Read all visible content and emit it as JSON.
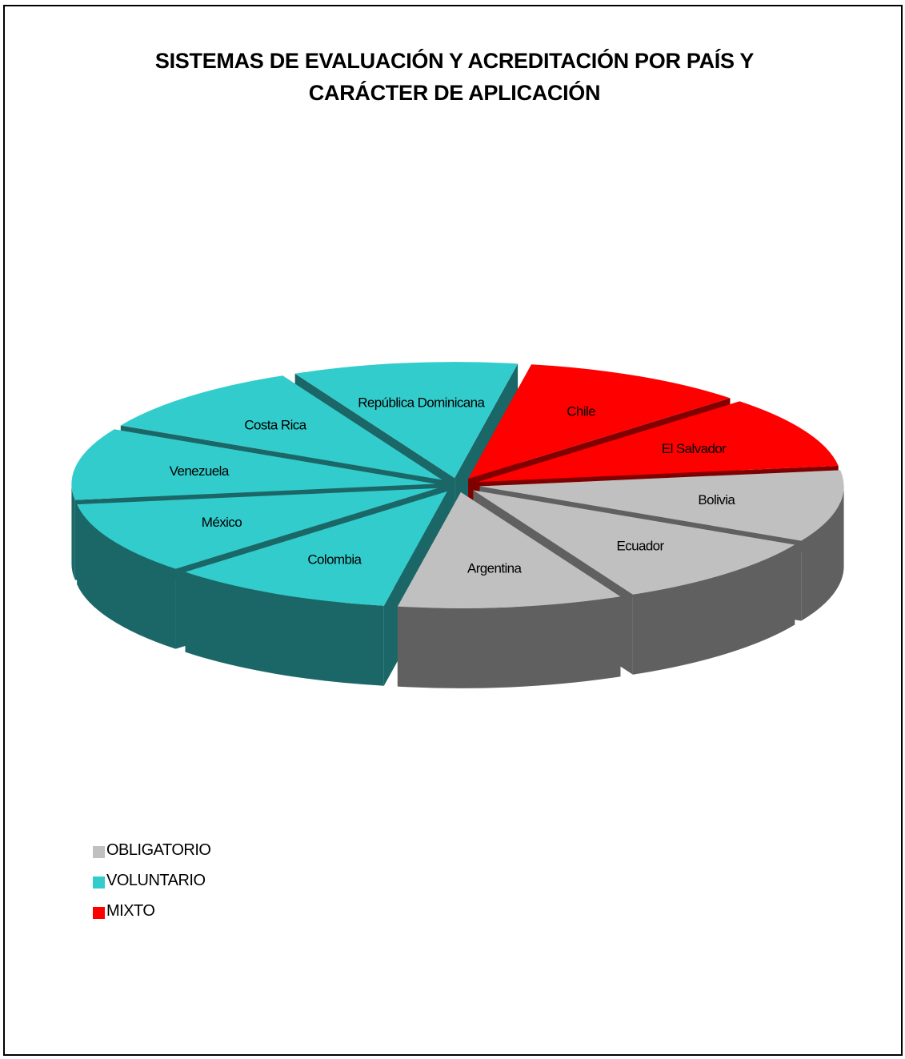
{
  "chart_data": {
    "type": "pie",
    "title": [
      "SISTEMAS DE EVALUACIÓN Y ACREDITACIÓN POR PAÍS Y",
      "CARÁCTER DE APLICACIÓN"
    ],
    "legend": {
      "position": "bottom-left",
      "entries": [
        {
          "name": "OBLIGATORIO",
          "color": "#c0c0c0"
        },
        {
          "name": "VOLUNTARIO",
          "color": "#33cccc"
        },
        {
          "name": "MIXTO",
          "color": "#ff0000"
        }
      ]
    },
    "slices": [
      {
        "label": "Chile",
        "value": 1,
        "category": "MIXTO"
      },
      {
        "label": "El Salvador",
        "value": 1,
        "category": "MIXTO"
      },
      {
        "label": "Bolivia",
        "value": 1,
        "category": "OBLIGATORIO"
      },
      {
        "label": "Ecuador",
        "value": 1,
        "category": "OBLIGATORIO"
      },
      {
        "label": "Argentina",
        "value": 1,
        "category": "OBLIGATORIO"
      },
      {
        "label": "Colombia",
        "value": 1,
        "category": "VOLUNTARIO"
      },
      {
        "label": "México",
        "value": 1,
        "category": "VOLUNTARIO"
      },
      {
        "label": "Venezuela",
        "value": 1,
        "category": "VOLUNTARIO"
      },
      {
        "label": "Costa Rica",
        "value": 1,
        "category": "VOLUNTARIO"
      },
      {
        "label": "República Dominicana",
        "value": 1,
        "category": "VOLUNTARIO"
      }
    ],
    "colors": {
      "OBLIGATORIO": {
        "top": "#c0c0c0",
        "side": "#606060"
      },
      "VOLUNTARIO": {
        "top": "#33cccc",
        "side": "#1b6767"
      },
      "MIXTO": {
        "top": "#ff0000",
        "side": "#800000"
      }
    },
    "style": "3d-exploded"
  }
}
